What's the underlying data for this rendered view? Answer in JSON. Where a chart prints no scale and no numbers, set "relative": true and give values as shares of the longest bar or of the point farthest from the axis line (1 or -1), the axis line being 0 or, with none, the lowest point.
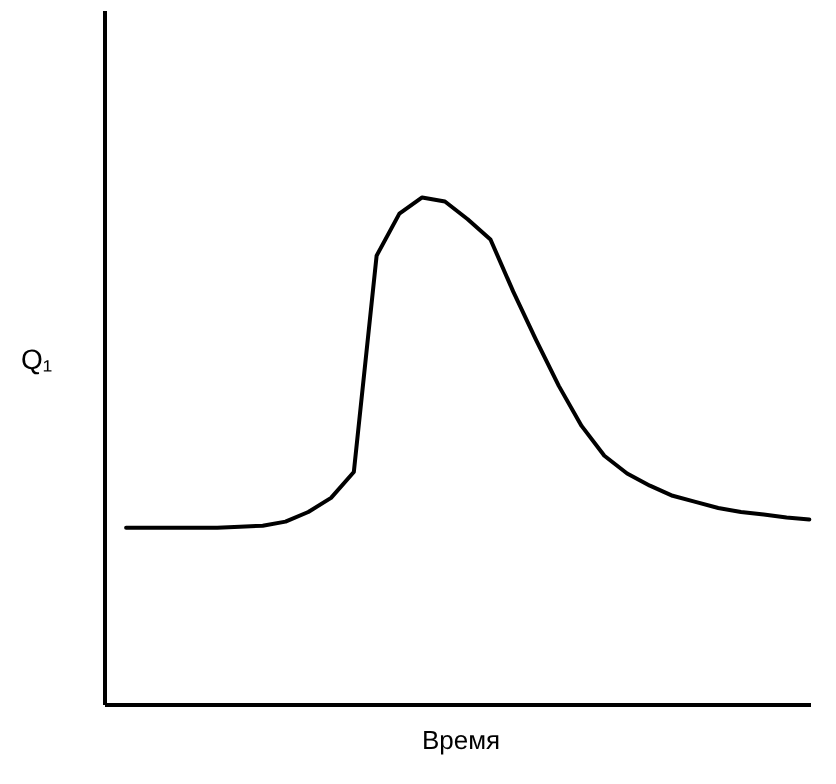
{
  "chart_data": {
    "type": "line",
    "relative": true,
    "xlabel": "Время",
    "ylabel": "Q₁",
    "categories": [
      null,
      null,
      null,
      null,
      null,
      null,
      null,
      null,
      null,
      null,
      null,
      null,
      null,
      null,
      null,
      null,
      null,
      null,
      null,
      null,
      null,
      null,
      null,
      null,
      null,
      null,
      null,
      null,
      null,
      null,
      null
    ],
    "series": [
      {
        "color": "#000000",
        "values": [
          0.348,
          0.348,
          0.348,
          0.348,
          0.348,
          0.35,
          0.352,
          0.36,
          0.379,
          0.407,
          0.458,
          0.885,
          0.968,
          1,
          0.992,
          0.957,
          0.917,
          0.814,
          0.719,
          0.628,
          0.549,
          0.49,
          0.455,
          0.431,
          0.411,
          0.399,
          0.387,
          0.379,
          0.374,
          0.368,
          0.364
        ]
      }
    ]
  }
}
